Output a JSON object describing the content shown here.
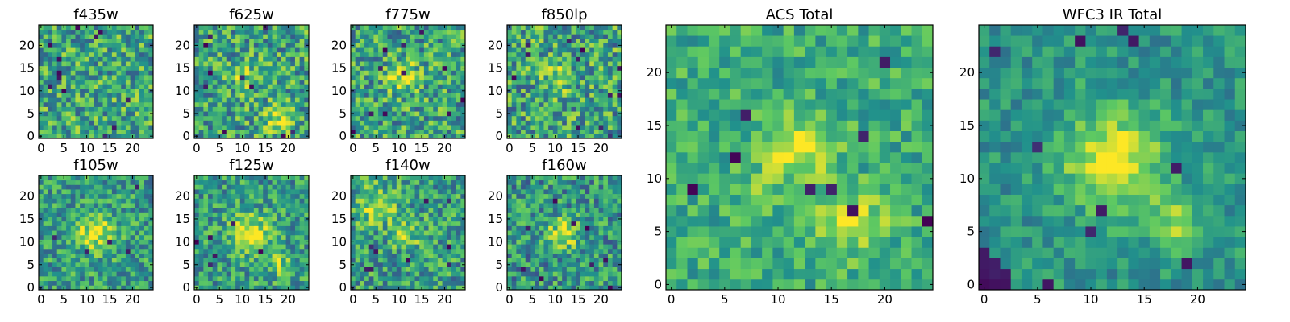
{
  "figure": {
    "colormap": "viridis",
    "colormap_stops": [
      "#440154",
      "#3b528b",
      "#21918c",
      "#5ec962",
      "#fde725"
    ]
  },
  "chart_data": [
    {
      "type": "heatmap",
      "title": "f435w",
      "grid_size": 25,
      "xticks": [
        0,
        5,
        10,
        15,
        20
      ],
      "yticks": [
        0,
        5,
        10,
        15,
        20
      ],
      "xlim": [
        -0.5,
        24.5
      ],
      "ylim": [
        -0.5,
        24.5
      ],
      "base_level": 0.6,
      "noise": 0.3,
      "blobs": [],
      "dark_spots": 12,
      "seed": 11
    },
    {
      "type": "heatmap",
      "title": "f625w",
      "grid_size": 25,
      "xticks": [
        0,
        5,
        10,
        15,
        20
      ],
      "yticks": [
        0,
        5,
        10,
        15,
        20
      ],
      "xlim": [
        -0.5,
        24.5
      ],
      "ylim": [
        -0.5,
        24.5
      ],
      "base_level": 0.58,
      "noise": 0.3,
      "blobs": [
        {
          "x": 18,
          "y": 4,
          "sigma": 2.2,
          "amp": 0.35
        },
        {
          "x": 11,
          "y": 13,
          "sigma": 2.5,
          "amp": 0.2
        }
      ],
      "dark_spots": 10,
      "seed": 23
    },
    {
      "type": "heatmap",
      "title": "f775w",
      "grid_size": 25,
      "xticks": [
        0,
        5,
        10,
        15,
        20
      ],
      "yticks": [
        0,
        5,
        10,
        15,
        20
      ],
      "xlim": [
        -0.5,
        24.5
      ],
      "ylim": [
        -0.5,
        24.5
      ],
      "base_level": 0.58,
      "noise": 0.3,
      "blobs": [
        {
          "x": 11,
          "y": 13,
          "sigma": 2.5,
          "amp": 0.3
        }
      ],
      "dark_spots": 11,
      "seed": 37
    },
    {
      "type": "heatmap",
      "title": "f850lp",
      "grid_size": 25,
      "xticks": [
        0,
        5,
        10,
        15,
        20
      ],
      "yticks": [
        0,
        5,
        10,
        15,
        20
      ],
      "xlim": [
        -0.5,
        24.5
      ],
      "ylim": [
        -0.5,
        24.5
      ],
      "base_level": 0.58,
      "noise": 0.32,
      "blobs": [
        {
          "x": 11,
          "y": 13,
          "sigma": 2.2,
          "amp": 0.25
        }
      ],
      "dark_spots": 12,
      "seed": 41
    },
    {
      "type": "heatmap",
      "title": "f105w",
      "grid_size": 25,
      "xticks": [
        0,
        5,
        10,
        15,
        20
      ],
      "yticks": [
        0,
        5,
        10,
        15,
        20
      ],
      "xlim": [
        -0.5,
        24.5
      ],
      "ylim": [
        -0.5,
        24.5
      ],
      "base_level": 0.55,
      "noise": 0.25,
      "blobs": [
        {
          "x": 12,
          "y": 12,
          "sigma": 3.2,
          "amp": 0.35
        }
      ],
      "dark_spots": 5,
      "seed": 53
    },
    {
      "type": "heatmap",
      "title": "f125w",
      "grid_size": 25,
      "xticks": [
        0,
        5,
        10,
        15,
        20
      ],
      "yticks": [
        0,
        5,
        10,
        15,
        20
      ],
      "xlim": [
        -0.5,
        24.5
      ],
      "ylim": [
        -0.5,
        24.5
      ],
      "base_level": 0.55,
      "noise": 0.25,
      "blobs": [
        {
          "x": 12,
          "y": 12,
          "sigma": 3.0,
          "amp": 0.4
        },
        {
          "x": 18,
          "y": 5,
          "sigma": 2.0,
          "amp": 0.25
        }
      ],
      "dark_spots": 6,
      "seed": 67
    },
    {
      "type": "heatmap",
      "title": "f140w",
      "grid_size": 25,
      "xticks": [
        0,
        5,
        10,
        15,
        20
      ],
      "yticks": [
        0,
        5,
        10,
        15,
        20
      ],
      "xlim": [
        -0.5,
        24.5
      ],
      "ylim": [
        -0.5,
        24.5
      ],
      "base_level": 0.55,
      "noise": 0.27,
      "blobs": [
        {
          "x": 5,
          "y": 18,
          "sigma": 3.0,
          "amp": 0.3
        },
        {
          "x": 12,
          "y": 12,
          "sigma": 2.5,
          "amp": 0.25
        }
      ],
      "dark_spots": 9,
      "seed": 79
    },
    {
      "type": "heatmap",
      "title": "f160w",
      "grid_size": 25,
      "xticks": [
        0,
        5,
        10,
        15,
        20
      ],
      "yticks": [
        0,
        5,
        10,
        15,
        20
      ],
      "xlim": [
        -0.5,
        24.5
      ],
      "ylim": [
        -0.5,
        24.5
      ],
      "base_level": 0.52,
      "noise": 0.28,
      "blobs": [
        {
          "x": 12,
          "y": 12,
          "sigma": 2.5,
          "amp": 0.4
        }
      ],
      "dark_spots": 9,
      "seed": 83
    },
    {
      "type": "heatmap",
      "title": "ACS Total",
      "grid_size": 25,
      "xticks": [
        0,
        5,
        10,
        15,
        20
      ],
      "yticks": [
        0,
        5,
        10,
        15,
        20
      ],
      "xlim": [
        -0.5,
        24.5
      ],
      "ylim": [
        -0.5,
        24.5
      ],
      "base_level": 0.62,
      "noise": 0.18,
      "blobs": [
        {
          "x": 12,
          "y": 13,
          "sigma": 2.2,
          "amp": 0.35
        },
        {
          "x": 17,
          "y": 6,
          "sigma": 2.0,
          "amp": 0.35
        },
        {
          "x": 8,
          "y": 9,
          "sigma": 1.5,
          "amp": 0.15
        }
      ],
      "dark_spots": 9,
      "seed": 97
    },
    {
      "type": "heatmap",
      "title": "WFC3 IR Total",
      "grid_size": 25,
      "xticks": [
        0,
        5,
        10,
        15,
        20
      ],
      "yticks": [
        0,
        5,
        10,
        15,
        20
      ],
      "xlim": [
        -0.5,
        24.5
      ],
      "ylim": [
        -0.5,
        24.5
      ],
      "base_level": 0.52,
      "noise": 0.15,
      "blobs": [
        {
          "x": 12,
          "y": 12,
          "sigma": 3.3,
          "amp": 0.45
        },
        {
          "x": 18,
          "y": 6,
          "sigma": 1.8,
          "amp": 0.3
        }
      ],
      "dark_spots": 10,
      "dark_corner": true,
      "seed": 101
    }
  ]
}
